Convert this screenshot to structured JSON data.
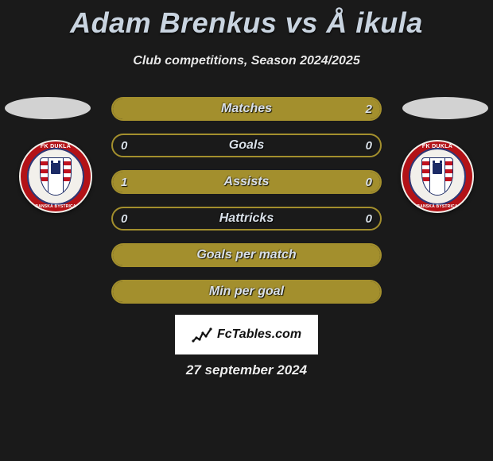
{
  "title": "Adam Brenkus vs Å ikula",
  "subtitle": "Club competitions, Season 2024/2025",
  "date": "27 september 2024",
  "logo_text": "FcTables.com",
  "accent_color": "#a38f2d",
  "ellipse_color": "#dcdcdc",
  "background_color": "#1a1a1a",
  "bar_border_color": "#a38f2d",
  "bar_fill_color": "#a38f2d",
  "text_color": "#d9e0e8",
  "crest": {
    "top_text": "FK DUKLA",
    "bottom_text": "BANSKÁ BYSTRICA",
    "ring_color": "#b31217",
    "shield_stripe": "#c1121f",
    "shield_border": "#1c2b66"
  },
  "rows": [
    {
      "label": "Matches",
      "left_val": "",
      "right_val": "2",
      "left_pct": 0,
      "right_pct": 100,
      "show_vals": true
    },
    {
      "label": "Goals",
      "left_val": "0",
      "right_val": "0",
      "left_pct": 0,
      "right_pct": 0,
      "show_vals": true
    },
    {
      "label": "Assists",
      "left_val": "1",
      "right_val": "0",
      "left_pct": 100,
      "right_pct": 0,
      "show_vals": true
    },
    {
      "label": "Hattricks",
      "left_val": "0",
      "right_val": "0",
      "left_pct": 0,
      "right_pct": 0,
      "show_vals": true
    },
    {
      "label": "Goals per match",
      "left_val": "",
      "right_val": "",
      "left_pct": 100,
      "right_pct": 100,
      "show_vals": false
    },
    {
      "label": "Min per goal",
      "left_val": "",
      "right_val": "",
      "left_pct": 100,
      "right_pct": 100,
      "show_vals": false
    }
  ]
}
